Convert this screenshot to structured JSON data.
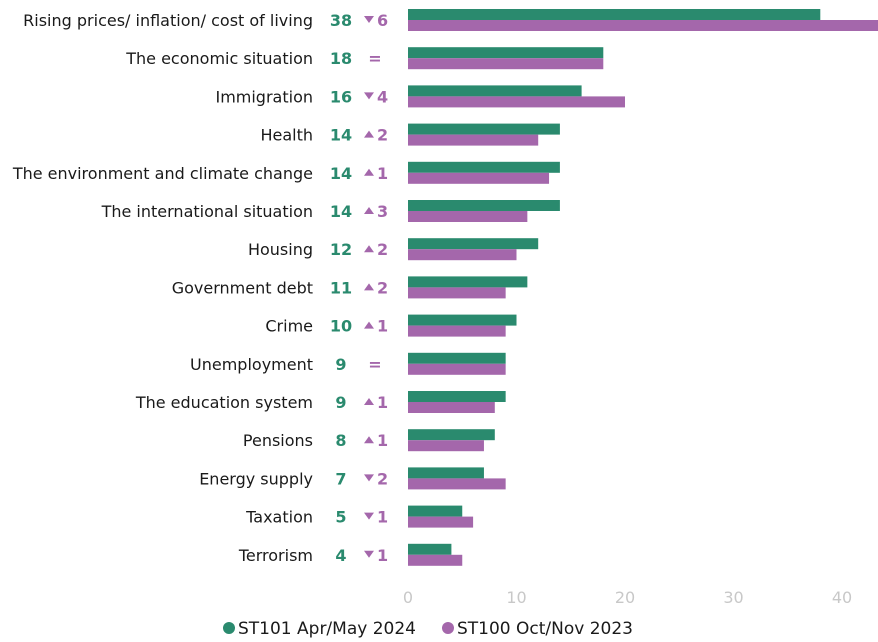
{
  "colors": {
    "series_1": "#2a8a6e",
    "series_2": "#a467ab",
    "label_text": "#1a1a1a",
    "tick_text": "#c8c8c8"
  },
  "chart_data": {
    "type": "bar",
    "orientation": "horizontal",
    "title": "",
    "xlabel": "",
    "ylabel": "",
    "xlim": [
      0,
      43
    ],
    "xticks": [
      "0",
      "10",
      "20",
      "30",
      "40"
    ],
    "grid": false,
    "legend_position": "bottom",
    "categories": [
      "Rising prices/ inflation/ cost of living",
      "The economic situation",
      "Immigration",
      "Health",
      "The environment and climate change",
      "The international situation",
      "Housing",
      "Government debt",
      "Crime",
      "Unemployment",
      "The education system",
      "Pensions",
      "Energy supply",
      "Taxation",
      "Terrorism"
    ],
    "value_labels": [
      "38",
      "18",
      "16",
      "14",
      "14",
      "14",
      "12",
      "11",
      "10",
      "9",
      "9",
      "8",
      "7",
      "5",
      "4"
    ],
    "changes": [
      {
        "direction": "down",
        "text": "6"
      },
      {
        "direction": "equal",
        "text": "="
      },
      {
        "direction": "down",
        "text": "4"
      },
      {
        "direction": "up",
        "text": "2"
      },
      {
        "direction": "up",
        "text": "1"
      },
      {
        "direction": "up",
        "text": "3"
      },
      {
        "direction": "up",
        "text": "2"
      },
      {
        "direction": "up",
        "text": "2"
      },
      {
        "direction": "up",
        "text": "1"
      },
      {
        "direction": "equal",
        "text": "="
      },
      {
        "direction": "up",
        "text": "1"
      },
      {
        "direction": "up",
        "text": "1"
      },
      {
        "direction": "down",
        "text": "2"
      },
      {
        "direction": "down",
        "text": "1"
      },
      {
        "direction": "down",
        "text": "1"
      }
    ],
    "series": [
      {
        "name": "ST101 Apr/May 2024",
        "values": [
          38,
          18,
          16,
          14,
          14,
          14,
          12,
          11,
          10,
          9,
          9,
          8,
          7,
          5,
          4
        ]
      },
      {
        "name": "ST100 Oct/Nov 2023",
        "values": [
          44,
          18,
          20,
          12,
          13,
          11,
          10,
          9,
          9,
          9,
          8,
          7,
          9,
          6,
          5
        ]
      }
    ]
  }
}
